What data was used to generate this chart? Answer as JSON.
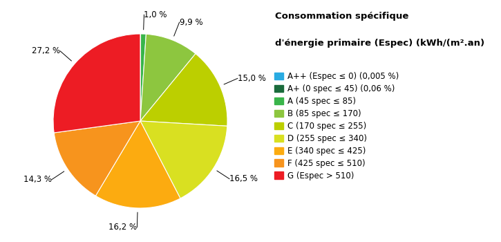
{
  "title_line1": "Consommation spécifique",
  "title_line2": "d'énergie primaire (Espec) (kWh/(m².an)",
  "slices": [
    {
      "label": "A++ (Espec ≤ 0) (0,005 %)",
      "value": 0.005,
      "color": "#29ABE2",
      "pct_display": null
    },
    {
      "label": "A+ (0 spec ≤ 45) (0,06 %)",
      "value": 0.06,
      "color": "#1A6B3C",
      "pct_display": null
    },
    {
      "label": "A (45 spec ≤ 85)",
      "value": 1.0,
      "color": "#39B54A",
      "pct_display": "1,0 %"
    },
    {
      "label": "B (85 spec ≤ 170)",
      "value": 9.9,
      "color": "#8DC63F",
      "pct_display": "9,9 %"
    },
    {
      "label": "C (170 spec ≤ 255)",
      "value": 15.0,
      "color": "#BCCF00",
      "pct_display": "15,0 %"
    },
    {
      "label": "D (255 spec ≤ 340)",
      "value": 16.5,
      "color": "#D9E021",
      "pct_display": "16,5 %"
    },
    {
      "label": "E (340 spec ≤ 425)",
      "value": 16.2,
      "color": "#FCAB10",
      "pct_display": "16,2 %"
    },
    {
      "label": "F (425 spec ≤ 510)",
      "value": 14.3,
      "color": "#F7941D",
      "pct_display": "14,3 %"
    },
    {
      "label": "G (Espec > 510)",
      "value": 27.2,
      "color": "#ED1C24",
      "pct_display": "27,2 %"
    }
  ],
  "label_fontsize": 8.5,
  "legend_title_fontsize": 9.5,
  "legend_fontsize": 8.5,
  "bg_color": "#FFFFFF"
}
